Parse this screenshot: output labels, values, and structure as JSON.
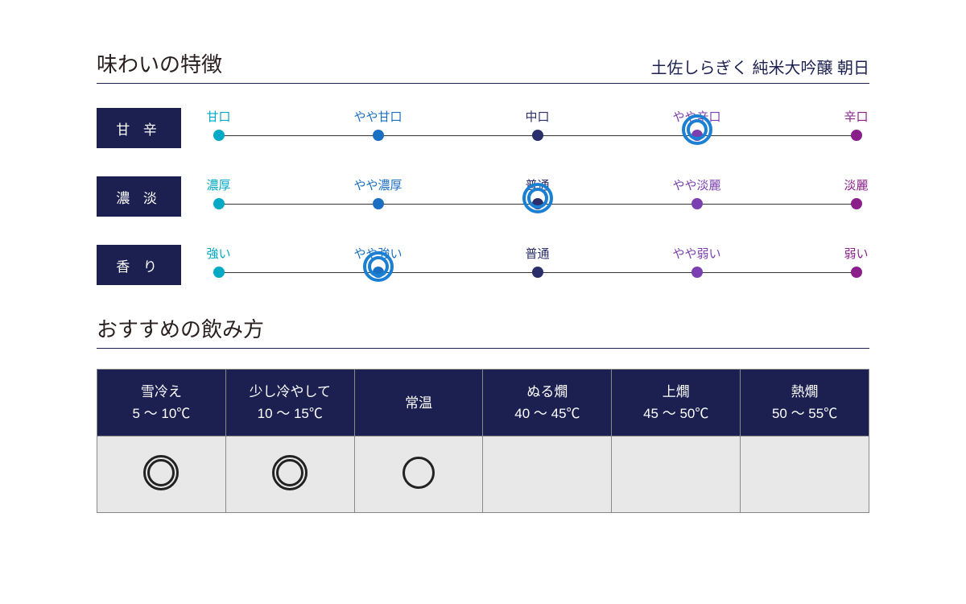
{
  "header": {
    "title": "味わいの特徴",
    "subtitle": "土佐しらぎく 純米大吟醸 朝日"
  },
  "palette": {
    "box_bg": "#1b2050",
    "ring": "#1b7fd4",
    "scale_colors": [
      "#00a9c4",
      "#1b6fc2",
      "#2a2e6a",
      "#7b3fb0",
      "#8a1f8a"
    ]
  },
  "scales": [
    {
      "name": "甘 辛",
      "labels": [
        "甘口",
        "やや甘口",
        "中口",
        "やや辛口",
        "辛口"
      ],
      "selected_index": 3
    },
    {
      "name": "濃 淡",
      "labels": [
        "濃厚",
        "やや濃厚",
        "普通",
        "やや淡麗",
        "淡麗"
      ],
      "selected_index": 2
    },
    {
      "name": "香 り",
      "labels": [
        "強い",
        "やや強い",
        "普通",
        "やや弱い",
        "弱い"
      ],
      "selected_index": 1
    }
  ],
  "scale_positions_pct": [
    2,
    26,
    50,
    74,
    98
  ],
  "serving": {
    "title": "おすすめの飲み方",
    "columns": [
      {
        "name": "雪冷え",
        "range": "5 〜 10℃",
        "mark": "double"
      },
      {
        "name": "少し冷やして",
        "range": "10 〜 15℃",
        "mark": "double"
      },
      {
        "name": "常温",
        "range": "",
        "mark": "single"
      },
      {
        "name": "ぬる燗",
        "range": "40 〜 45℃",
        "mark": ""
      },
      {
        "name": "上燗",
        "range": "45 〜 50℃",
        "mark": ""
      },
      {
        "name": "熱燗",
        "range": "50 〜 55℃",
        "mark": ""
      }
    ]
  }
}
